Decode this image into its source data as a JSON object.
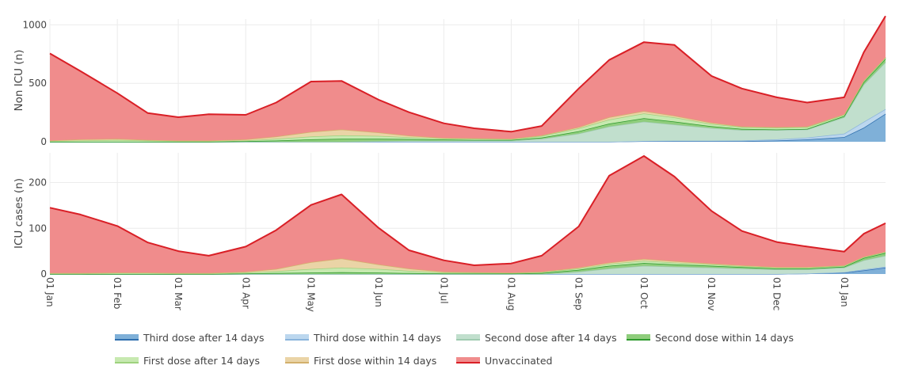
{
  "chart_data": {
    "type": "area",
    "stacked": true,
    "x": [
      "2021-01-01",
      "2021-01-15",
      "2021-02-01",
      "2021-02-15",
      "2021-03-01",
      "2021-03-15",
      "2021-04-01",
      "2021-04-15",
      "2021-05-01",
      "2021-05-15",
      "2021-06-01",
      "2021-06-15",
      "2021-07-01",
      "2021-07-15",
      "2021-08-01",
      "2021-08-15",
      "2021-09-01",
      "2021-09-15",
      "2021-10-01",
      "2021-10-15",
      "2021-11-01",
      "2021-11-15",
      "2021-12-01",
      "2021-12-15",
      "2022-01-01",
      "2022-01-10",
      "2022-01-20"
    ],
    "x_ticks": [
      "01 Jan",
      "01 Feb",
      "01 Mar",
      "01 Apr",
      "01 May",
      "01 Jun",
      "01 Jul",
      "01 Aug",
      "01 Sep",
      "01 Oct",
      "01 Nov",
      "01 Dec",
      "01 Jan"
    ],
    "x_tick_dates": [
      "2021-01-01",
      "2021-02-01",
      "2021-03-01",
      "2021-04-01",
      "2021-05-01",
      "2021-06-01",
      "2021-07-01",
      "2021-08-01",
      "2021-09-01",
      "2021-10-01",
      "2021-11-01",
      "2021-12-01",
      "2022-01-01"
    ],
    "grid": true,
    "legend_position": "bottom",
    "series_order": [
      "Third dose after 14 days",
      "Third dose within 14 days",
      "Second dose after 14 days",
      "Second dose within 14 days",
      "First dose after 14 days",
      "First dose within 14 days",
      "Unvaccinated"
    ],
    "colors": {
      "Third dose after 14 days": {
        "fill": "#7fb0d8",
        "line": "#2f6fae"
      },
      "Third dose within 14 days": {
        "fill": "#bcd7ee",
        "line": "#8ab4dc"
      },
      "Second dose after 14 days": {
        "fill": "#c1dfcd",
        "line": "#9fcbb0"
      },
      "Second dose within 14 days": {
        "fill": "#8fcd7c",
        "line": "#2e9a2e"
      },
      "First dose after 14 days": {
        "fill": "#c7e9b0",
        "line": "#9ed27e"
      },
      "First dose within 14 days": {
        "fill": "#ead4a6",
        "line": "#d3b06c"
      },
      "Unvaccinated": {
        "fill": "#f08c8c",
        "line": "#d91f26"
      }
    },
    "panels": [
      {
        "ylabel": "Non ICU (n)",
        "ylim": [
          0,
          1050
        ],
        "yticks": [
          0,
          500,
          1000
        ],
        "series": [
          {
            "name": "Third dose after 14 days",
            "values": [
              0,
              0,
              0,
              0,
              0,
              0,
              0,
              0,
              0,
              0,
              0,
              0,
              0,
              0,
              0,
              0,
              0,
              0,
              5,
              5,
              5,
              5,
              10,
              20,
              40,
              120,
              240
            ]
          },
          {
            "name": "Third dose within 14 days",
            "values": [
              0,
              0,
              0,
              0,
              0,
              0,
              0,
              0,
              0,
              0,
              0,
              0,
              0,
              0,
              0,
              0,
              0,
              0,
              2,
              3,
              3,
              5,
              10,
              15,
              30,
              50,
              40
            ]
          },
          {
            "name": "Second dose after 14 days",
            "values": [
              0,
              0,
              0,
              0,
              0,
              0,
              0,
              0,
              0,
              0,
              5,
              8,
              8,
              10,
              10,
              25,
              70,
              130,
              165,
              140,
              110,
              90,
              80,
              70,
              140,
              320,
              400
            ]
          },
          {
            "name": "Second dose within 14 days",
            "values": [
              0,
              0,
              0,
              0,
              0,
              0,
              5,
              10,
              20,
              25,
              20,
              15,
              10,
              5,
              5,
              10,
              20,
              25,
              30,
              25,
              15,
              10,
              5,
              5,
              10,
              20,
              30
            ]
          },
          {
            "name": "First dose after 14 days",
            "values": [
              5,
              10,
              15,
              10,
              5,
              5,
              5,
              15,
              25,
              30,
              25,
              15,
              10,
              10,
              8,
              15,
              25,
              35,
              40,
              35,
              20,
              15,
              15,
              15,
              10,
              10,
              10
            ]
          },
          {
            "name": "First dose within 14 days",
            "values": [
              5,
              10,
              10,
              5,
              5,
              5,
              10,
              20,
              40,
              50,
              30,
              15,
              5,
              5,
              3,
              5,
              10,
              20,
              20,
              15,
              10,
              5,
              5,
              5,
              5,
              5,
              5
            ]
          },
          {
            "name": "Unvaccinated",
            "values": [
              745,
              585,
              390,
              230,
              200,
              225,
              210,
              290,
              430,
              415,
              280,
              200,
              125,
              85,
              60,
              80,
              330,
              490,
              590,
              605,
              400,
              325,
              255,
              205,
              145,
              240,
              350
            ]
          }
        ]
      },
      {
        "ylabel": "ICU cases (n)",
        "ylim": [
          0,
          265
        ],
        "yticks": [
          0,
          100,
          200
        ],
        "series": [
          {
            "name": "Third dose after 14 days",
            "values": [
              0,
              0,
              0,
              0,
              0,
              0,
              0,
              0,
              0,
              0,
              0,
              0,
              0,
              0,
              0,
              0,
              0,
              0,
              0,
              0,
              0,
              0,
              0,
              1,
              3,
              8,
              14
            ]
          },
          {
            "name": "Third dose within 14 days",
            "values": [
              0,
              0,
              0,
              0,
              0,
              0,
              0,
              0,
              0,
              0,
              0,
              0,
              0,
              0,
              0,
              0,
              0,
              0,
              0,
              0,
              0,
              0,
              0,
              0,
              1,
              2,
              2
            ]
          },
          {
            "name": "Second dose after 14 days",
            "values": [
              0,
              0,
              0,
              0,
              0,
              0,
              0,
              0,
              0,
              0,
              0,
              0,
              0,
              0,
              0,
              0,
              5,
              12,
              18,
              16,
              14,
              12,
              10,
              9,
              10,
              20,
              24
            ]
          },
          {
            "name": "Second dose within 14 days",
            "values": [
              0,
              0,
              0,
              0,
              0,
              0,
              1,
              2,
              3,
              4,
              3,
              2,
              1,
              1,
              1,
              2,
              4,
              6,
              6,
              5,
              4,
              3,
              2,
              2,
              2,
              5,
              6
            ]
          },
          {
            "name": "First dose after 14 days",
            "values": [
              1,
              1,
              2,
              2,
              1,
              1,
              2,
              4,
              8,
              10,
              8,
              5,
              2,
              2,
              1,
              2,
              3,
              4,
              5,
              4,
              3,
              2,
              2,
              2,
              2,
              2,
              2
            ]
          },
          {
            "name": "First dose within 14 days",
            "values": [
              1,
              1,
              1,
              1,
              1,
              1,
              2,
              5,
              15,
              20,
              10,
              5,
              2,
              1,
              1,
              1,
              2,
              3,
              4,
              3,
              2,
              2,
              1,
              1,
              1,
              1,
              1
            ]
          },
          {
            "name": "Unvaccinated",
            "values": [
              143,
              128,
              102,
              66,
              48,
              38,
              55,
              85,
              125,
              140,
              80,
              40,
              25,
              15,
              20,
              35,
              90,
              190,
              225,
              185,
              115,
              75,
              55,
              45,
              30,
              50,
              62
            ]
          }
        ]
      }
    ]
  }
}
